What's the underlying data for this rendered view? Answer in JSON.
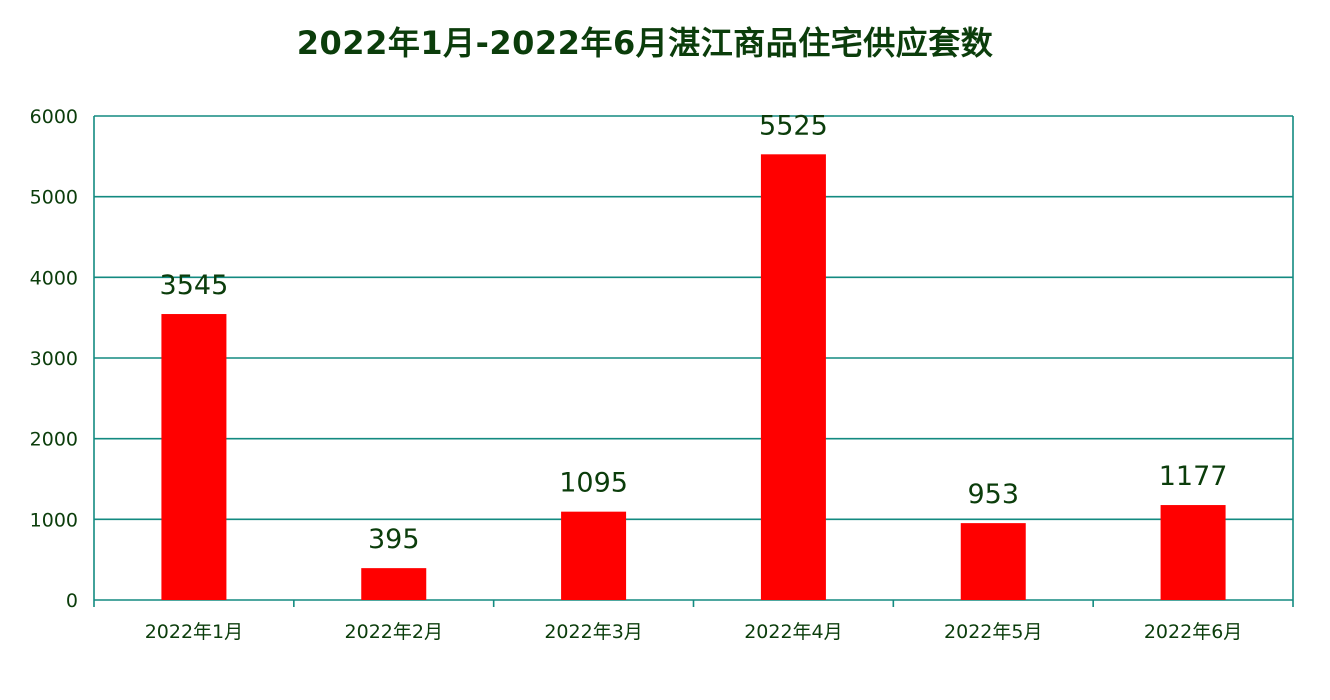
{
  "chart_data": {
    "type": "bar",
    "title": "2022年1月-2022年6月湛江商品住宅供应套数",
    "categories": [
      "2022年1月",
      "2022年2月",
      "2022年3月",
      "2022年4月",
      "2022年5月",
      "2022年6月"
    ],
    "values": [
      3545,
      395,
      1095,
      5525,
      953,
      1177
    ],
    "data_labels": [
      "3545",
      "395",
      "1095",
      "5525",
      "953",
      "1177"
    ],
    "yticks": [
      0,
      1000,
      2000,
      3000,
      4000,
      5000,
      6000
    ],
    "ytick_labels": [
      "0",
      "1000",
      "2000",
      "3000",
      "4000",
      "5000",
      "6000"
    ],
    "ylim": [
      0,
      6000
    ],
    "xlabel": "",
    "ylabel": "",
    "grid": true,
    "legend": "none",
    "colors": {
      "bar": "#ff0000",
      "grid": "#138a80",
      "axis": "#138a80",
      "text": "#0b3d0b"
    }
  }
}
